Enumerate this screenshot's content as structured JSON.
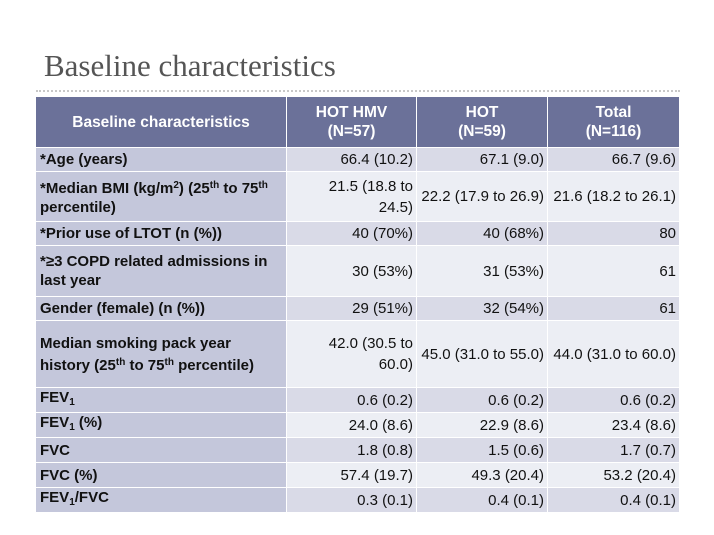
{
  "slide": {
    "title": "Baseline characteristics"
  },
  "table": {
    "headers": [
      "Baseline characteristics",
      "HOT HMV\n(N=57)",
      "HOT\n(N=59)",
      "Total\n(N=116)"
    ],
    "rows": [
      {
        "label": "*Age (years)",
        "values": [
          "66.4 (10.2)",
          "67.1 (9.0)",
          "66.7 (9.6)"
        ]
      },
      {
        "label": "*Median BMI (kg/m2) (25th to 75th percentile)",
        "values": [
          "21.5 (18.8 to 24.5)",
          "22.2 (17.9 to 26.9)",
          "21.6 (18.2 to 26.1)"
        ]
      },
      {
        "label": "*Prior use of LTOT (n (%))",
        "values": [
          "40 (70%)",
          "40 (68%)",
          "80"
        ]
      },
      {
        "label": "*≥3 COPD related admissions in last year",
        "values": [
          "30 (53%)",
          "31 (53%)",
          "61"
        ]
      },
      {
        "label": "Gender (female) (n (%))",
        "values": [
          "29 (51%)",
          "32 (54%)",
          "61"
        ]
      },
      {
        "label": "Median smoking pack year history (25th to 75th percentile)",
        "values": [
          "42.0 (30.5 to 60.0)",
          "45.0 (31.0 to 55.0)",
          "44.0 (31.0 to 60.0)"
        ]
      },
      {
        "label": "FEV1",
        "values": [
          "0.6 (0.2)",
          "0.6 (0.2)",
          "0.6 (0.2)"
        ]
      },
      {
        "label": "FEV1 (%)",
        "values": [
          "24.0 (8.6)",
          "22.9 (8.6)",
          "23.4 (8.6)"
        ]
      },
      {
        "label": "FVC",
        "values": [
          "1.8 (0.8)",
          "1.5 (0.6)",
          "1.7 (0.7)"
        ]
      },
      {
        "label": "FVC (%)",
        "values": [
          "57.4 (19.7)",
          "49.3 (20.4)",
          "53.2 (20.4)"
        ]
      },
      {
        "label": "FEV1/FVC",
        "values": [
          "0.3 (0.1)",
          "0.4 (0.1)",
          "0.4 (0.1)"
        ]
      }
    ]
  },
  "colors": {
    "header_bg": "#6b7199",
    "label_bg": "#c4c7db",
    "row_odd_bg": "#d9dae7",
    "row_even_bg": "#eceef4",
    "title": "#555555"
  }
}
